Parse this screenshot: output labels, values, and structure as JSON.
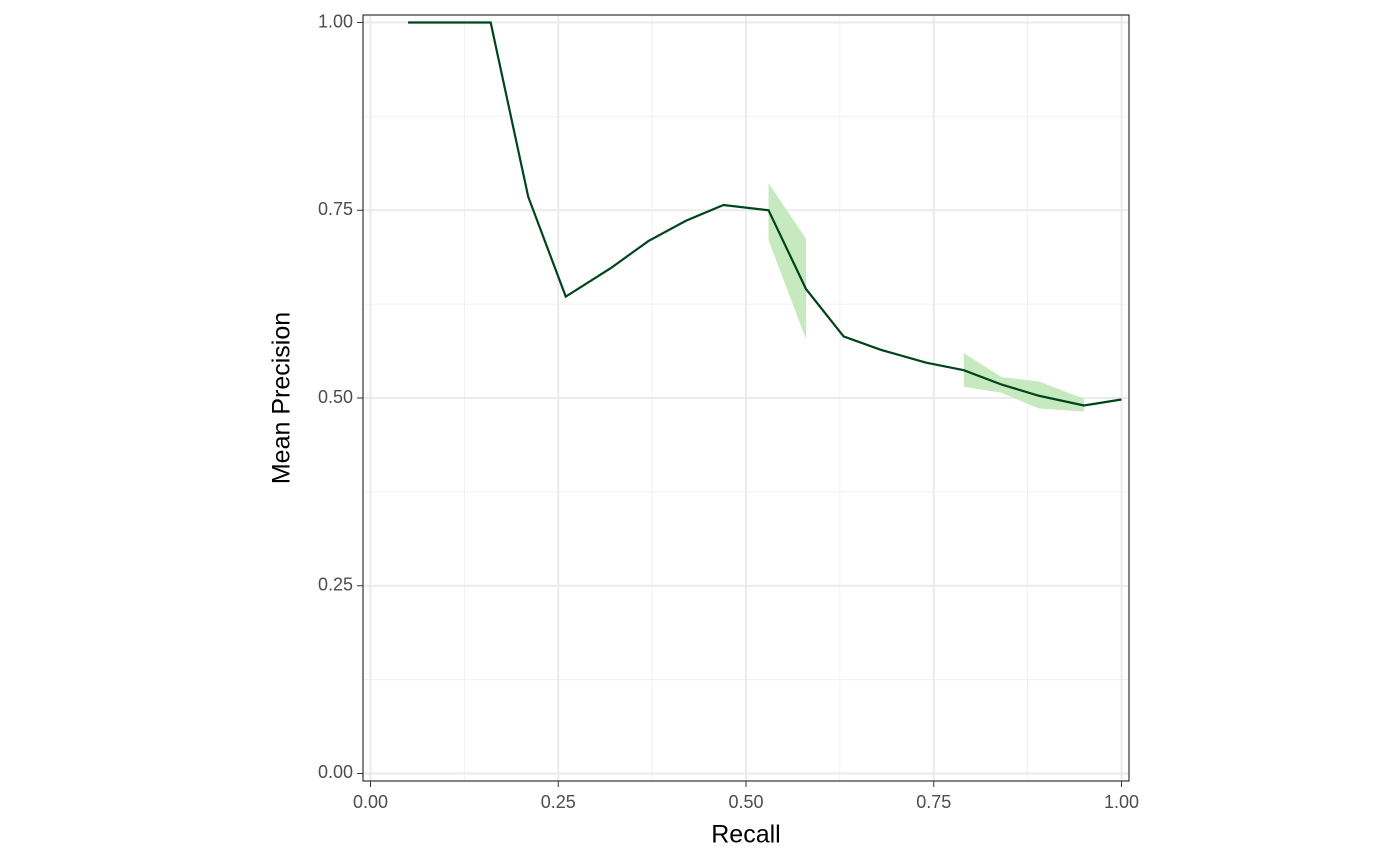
{
  "chart_data": {
    "type": "line",
    "xlabel": "Recall",
    "ylabel": "Mean Precision",
    "x": [
      0.05,
      0.16,
      0.21,
      0.26,
      0.32,
      0.37,
      0.42,
      0.47,
      0.53,
      0.58,
      0.63,
      0.68,
      0.74,
      0.79,
      0.84,
      0.89,
      0.95,
      1.0
    ],
    "series": [
      {
        "color": "#00441b",
        "values": [
          1.0,
          1.0,
          0.768,
          0.635,
          0.673,
          0.709,
          0.736,
          0.757,
          0.75,
          0.645,
          0.582,
          0.564,
          0.547,
          0.537,
          0.518,
          0.503,
          0.49,
          0.498
        ],
        "lower": [
          null,
          null,
          null,
          null,
          null,
          null,
          null,
          null,
          0.71,
          0.578,
          null,
          null,
          null,
          0.515,
          0.507,
          0.486,
          0.482,
          null
        ],
        "upper": [
          null,
          null,
          null,
          null,
          null,
          null,
          null,
          null,
          0.786,
          0.712,
          null,
          null,
          null,
          0.56,
          0.528,
          0.522,
          0.499,
          null
        ],
        "band_color": "#c7e9c0"
      }
    ],
    "xlim": [
      -0.01,
      1.01
    ],
    "ylim": [
      -0.01,
      1.01
    ],
    "xticks": [
      {
        "value": 0,
        "label": "0.00"
      },
      {
        "value": 0.25,
        "label": "0.25"
      },
      {
        "value": 0.5,
        "label": "0.50"
      },
      {
        "value": 0.75,
        "label": "0.75"
      },
      {
        "value": 1,
        "label": "1.00"
      }
    ],
    "yticks": [
      {
        "value": 0,
        "label": "0.00"
      },
      {
        "value": 0.25,
        "label": "0.25"
      },
      {
        "value": 0.5,
        "label": "0.50"
      },
      {
        "value": 0.75,
        "label": "0.75"
      },
      {
        "value": 1,
        "label": "1.00"
      }
    ],
    "minor_xticks": [
      0.125,
      0.375,
      0.625,
      0.875
    ],
    "minor_yticks": [
      0.125,
      0.375,
      0.625,
      0.875
    ],
    "grid": true
  }
}
